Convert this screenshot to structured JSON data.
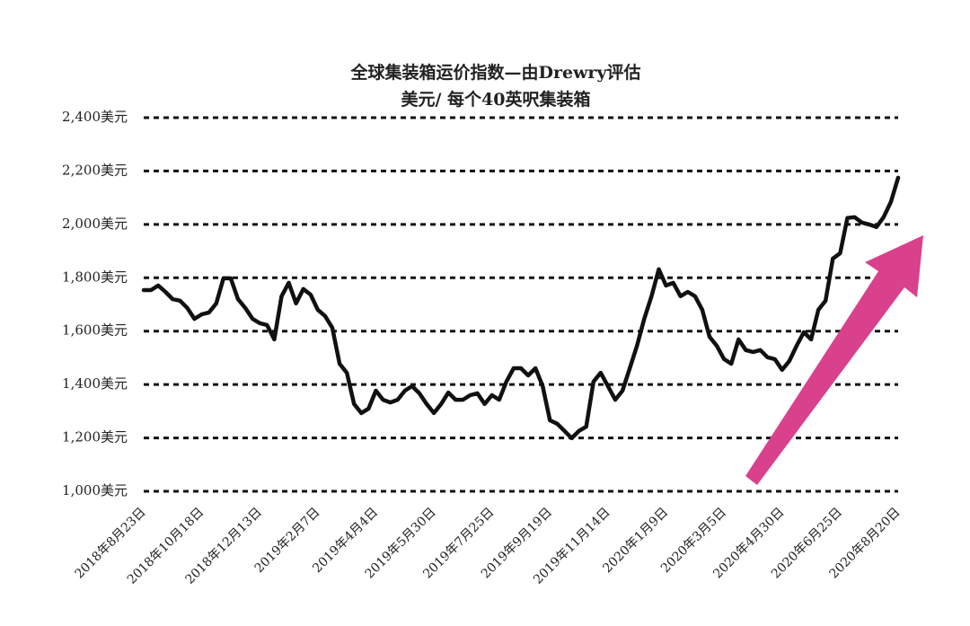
{
  "chart_data": {
    "type": "line",
    "title": "全球集装箱运价指数—由Drewry评估",
    "subtitle": "美元/ 每个40英呎集装箱",
    "categories": [
      "2018年8月23日",
      null,
      null,
      null,
      null,
      null,
      null,
      null,
      "2018年10月18日",
      null,
      null,
      null,
      null,
      null,
      null,
      null,
      "2018年12月13日",
      null,
      null,
      null,
      null,
      null,
      null,
      null,
      "2019年2月7日",
      null,
      null,
      null,
      null,
      null,
      null,
      null,
      "2019年4月4日",
      null,
      null,
      null,
      null,
      null,
      null,
      null,
      "2019年5月30日",
      null,
      null,
      null,
      null,
      null,
      null,
      null,
      "2019年7月25日",
      null,
      null,
      null,
      null,
      null,
      null,
      null,
      "2019年9月19日",
      null,
      null,
      null,
      null,
      null,
      null,
      null,
      "2019年11月14日",
      null,
      null,
      null,
      null,
      null,
      null,
      null,
      "2020年1月9日",
      null,
      null,
      null,
      null,
      null,
      null,
      null,
      "2020年3月5日",
      null,
      null,
      null,
      null,
      null,
      null,
      null,
      "2020年4月30日",
      null,
      null,
      null,
      null,
      null,
      null,
      null,
      "2020年6月25日",
      null,
      null,
      null,
      null,
      null,
      null,
      null,
      "2020年8月20日"
    ],
    "values": [
      1754,
      1754,
      1771,
      1747,
      1720,
      1714,
      1687,
      1646,
      1663,
      1670,
      1704,
      1798,
      1798,
      1720,
      1687,
      1646,
      1630,
      1623,
      1569,
      1731,
      1781,
      1704,
      1758,
      1737,
      1680,
      1657,
      1613,
      1478,
      1444,
      1327,
      1293,
      1310,
      1377,
      1343,
      1333,
      1343,
      1377,
      1394,
      1367,
      1327,
      1293,
      1327,
      1370,
      1343,
      1343,
      1360,
      1367,
      1327,
      1360,
      1343,
      1411,
      1461,
      1461,
      1434,
      1461,
      1394,
      1266,
      1253,
      1226,
      1199,
      1226,
      1242,
      1411,
      1444,
      1394,
      1343,
      1377,
      1461,
      1545,
      1646,
      1731,
      1832,
      1771,
      1781,
      1731,
      1747,
      1731,
      1680,
      1579,
      1545,
      1495,
      1478,
      1569,
      1529,
      1522,
      1529,
      1502,
      1495,
      1455,
      1488,
      1545,
      1596,
      1569,
      1680,
      1714,
      1872,
      1892,
      2024,
      2027,
      2007,
      2000,
      1990,
      2027,
      2084,
      2175
    ],
    "color": "#111111",
    "ylim": [
      1000,
      2400
    ],
    "yticks": [
      {
        "value": 1000,
        "label": "1,000美元"
      },
      {
        "value": 1200,
        "label": "1,200美元"
      },
      {
        "value": 1400,
        "label": "1,400美元"
      },
      {
        "value": 1600,
        "label": "1,600美元"
      },
      {
        "value": 1800,
        "label": "1,800美元"
      },
      {
        "value": 2000,
        "label": "2,000美元"
      },
      {
        "value": 2200,
        "label": "2,200美元"
      },
      {
        "value": 2400,
        "label": "2,400美元"
      }
    ],
    "grid": true
  }
}
